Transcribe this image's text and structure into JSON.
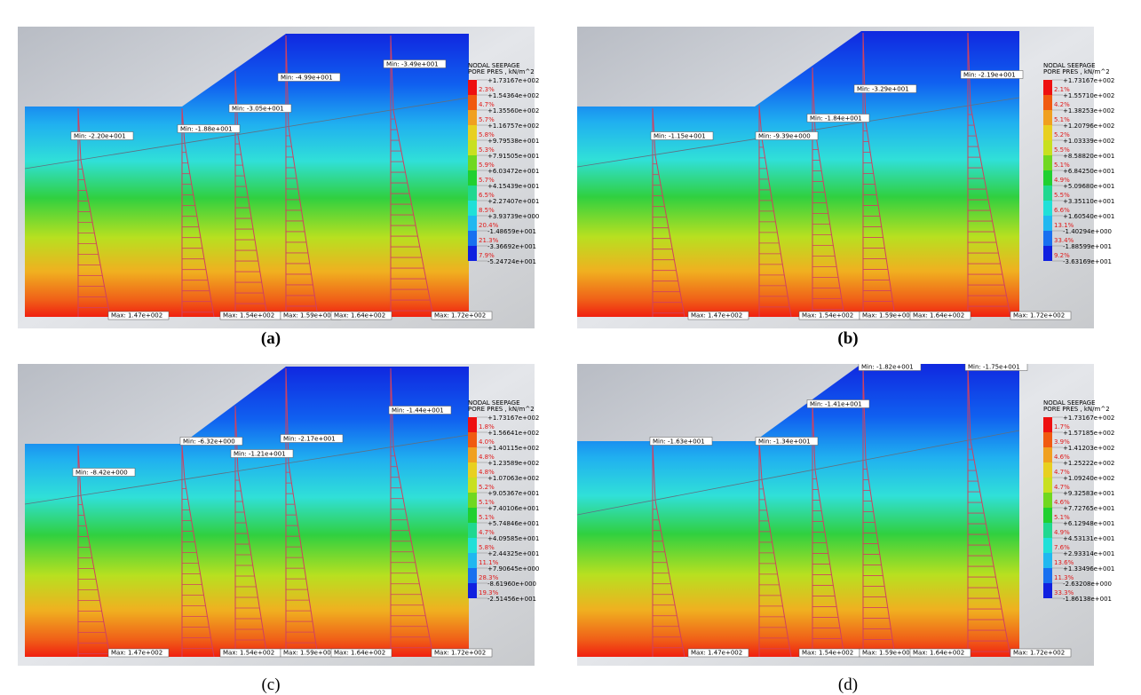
{
  "panels": [
    {
      "caption": "(a)",
      "legend_title": [
        "NODAL SEEPAGE",
        "PORE PRES , kN/m^2"
      ],
      "min_labels": [
        "Min: -2.20e+001",
        "Min: -1.88e+001",
        "Min: -3.05e+001",
        "Min: -4.99e+001",
        "Min: -3.49e+001"
      ],
      "max_labels": [
        "Max: 1.47e+002",
        "Max: 1.54e+002",
        "Max: 1.59e+002",
        "Max: 1.64e+002",
        "Max: 1.72e+002"
      ],
      "legend_values": [
        "+1.73167e+002",
        "+1.54364e+002",
        "+1.35560e+002",
        "+1.16757e+002",
        "+9.79538e+001",
        "+7.91505e+001",
        "+6.03472e+001",
        "+4.15439e+001",
        "+2.27407e+001",
        "+3.93739e+000",
        "-1.48659e+001",
        "-3.36692e+001",
        "-5.24724e+001"
      ],
      "legend_percents": [
        "2.3%",
        "4.7%",
        "5.7%",
        "5.8%",
        "5.3%",
        "5.9%",
        "5.7%",
        "6.5%",
        "8.5%",
        "20.4%",
        "21.3%",
        "7.9%"
      ]
    },
    {
      "caption": "(b)",
      "legend_title": [
        "NODAL SEEPAGE",
        "PORE PRES , kN/m^2"
      ],
      "min_labels": [
        "Min: -1.15e+001",
        "Min: -9.39e+000",
        "Min: -1.84e+001",
        "Min: -3.29e+001",
        "Min: -2.19e+001"
      ],
      "max_labels": [
        "Max: 1.47e+002",
        "Max: 1.54e+002",
        "Max: 1.59e+002",
        "Max: 1.64e+002",
        "Max: 1.72e+002"
      ],
      "legend_values": [
        "+1.73167e+002",
        "+1.55710e+002",
        "+1.38253e+002",
        "+1.20796e+002",
        "+1.03339e+002",
        "+8.58820e+001",
        "+6.84250e+001",
        "+5.09680e+001",
        "+3.35110e+001",
        "+1.60540e+001",
        "-1.40294e+000",
        "-1.88599e+001",
        "-3.63169e+001"
      ],
      "legend_percents": [
        "2.1%",
        "4.2%",
        "5.1%",
        "5.2%",
        "5.5%",
        "5.1%",
        "4.9%",
        "5.5%",
        "6.6%",
        "13.1%",
        "33.4%",
        "9.2%"
      ]
    },
    {
      "caption": "(c)",
      "legend_title": [
        "NODAL SEEPAGE",
        "PORE PRES , kN/m^2"
      ],
      "min_labels": [
        "Min: -8.42e+000",
        "Min: -6.32e+000",
        "Min: -1.21e+001",
        "Min: -2.17e+001",
        "Min: -1.44e+001"
      ],
      "max_labels": [
        "Max: 1.47e+002",
        "Max: 1.54e+002",
        "Max: 1.59e+002",
        "Max: 1.64e+002",
        "Max: 1.72e+002"
      ],
      "legend_values": [
        "+1.73167e+002",
        "+1.56641e+002",
        "+1.40115e+002",
        "+1.23589e+002",
        "+1.07063e+002",
        "+9.05367e+001",
        "+7.40106e+001",
        "+5.74846e+001",
        "+4.09585e+001",
        "+2.44325e+001",
        "+7.90645e+000",
        "-8.61960e+000",
        "-2.51456e+001"
      ],
      "legend_percents": [
        "1.8%",
        "4.0%",
        "4.8%",
        "4.8%",
        "5.2%",
        "5.1%",
        "5.1%",
        "4.7%",
        "5.8%",
        "11.1%",
        "28.3%",
        "19.3%"
      ]
    },
    {
      "caption": "(d)",
      "legend_title": [
        "NODAL SEEPAGE",
        "PORE PRES , kN/m^2"
      ],
      "min_labels": [
        "Min: -1.63e+001",
        "Min: -1.34e+001",
        "Min: -1.41e+001",
        "Min: -1.82e+001",
        "Min: -1.75e+001"
      ],
      "max_labels": [
        "Max: 1.47e+002",
        "Max: 1.54e+002",
        "Max: 1.59e+002",
        "Max: 1.64e+002",
        "Max: 1.72e+002"
      ],
      "legend_values": [
        "+1.73167e+002",
        "+1.57185e+002",
        "+1.41203e+002",
        "+1.25222e+002",
        "+1.09240e+002",
        "+9.32583e+001",
        "+7.72765e+001",
        "+6.12948e+001",
        "+4.53131e+001",
        "+2.93314e+001",
        "+1.33496e+001",
        "-2.63208e+000",
        "-1.86138e+001"
      ],
      "legend_percents": [
        "1.7%",
        "3.9%",
        "4.6%",
        "4.7%",
        "4.7%",
        "4.6%",
        "5.1%",
        "4.9%",
        "7.6%",
        "13.6%",
        "11.3%",
        "33.3%"
      ]
    }
  ]
}
